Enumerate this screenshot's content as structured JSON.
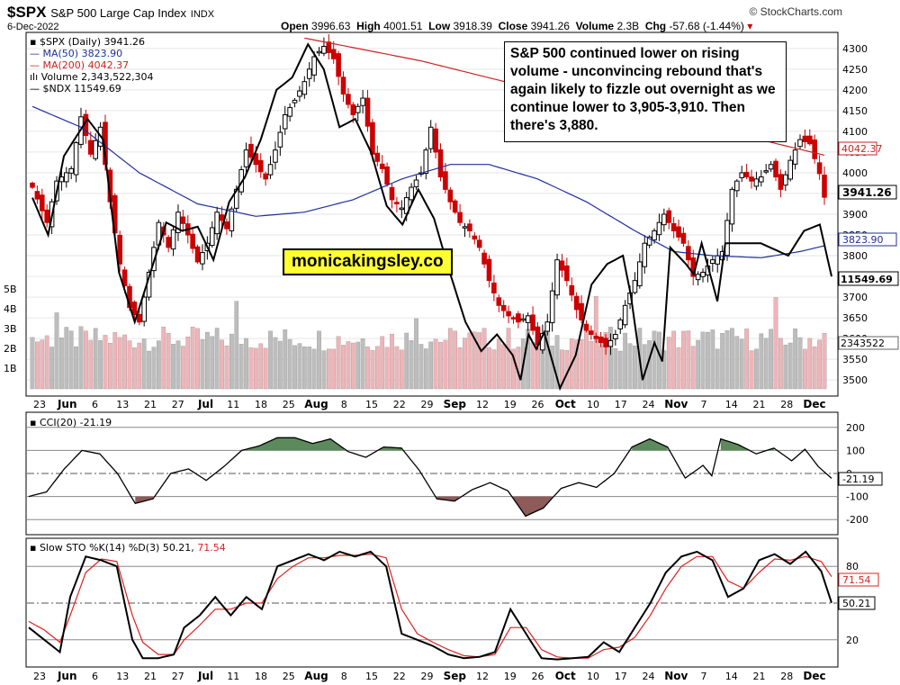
{
  "header": {
    "symbol": "$SPX",
    "name": "S&P 500 Large Cap Index",
    "exchange": "INDX",
    "date": "6-Dec-2022",
    "brand": "© StockCharts.com",
    "open_label": "Open",
    "open": "3996.63",
    "high_label": "High",
    "high": "4001.51",
    "low_label": "Low",
    "low": "3918.39",
    "close_label": "Close",
    "close": "3941.26",
    "volume_label": "Volume",
    "volume": "2.3B",
    "chg_label": "Chg",
    "chg": "-57.68 (-1.44%)"
  },
  "annotation": "S&P 500 continued lower on rising volume - unconvincing rebound that's again likely to fizzle out overnight as we continue lower to 3,905-3,910. Then there's 3,880.",
  "watermark": "monicakingsley.co",
  "colors": {
    "up": "#000000",
    "down": "#cc0000",
    "ma50": "#1f2f9f",
    "ma200": "#cc2222",
    "ndx": "#000000",
    "vol_up": "#bdbdbd",
    "vol_down": "#f0b4b8",
    "cci_pos": "#5c8a5c",
    "cci_neg": "#8f5a5a",
    "stoK": "#000000",
    "stoD": "#dd2222"
  },
  "chart_data": [
    {
      "type": "candlestick",
      "panel": "price",
      "legend": {
        "spx": "$SPX (Daily) 3941.26",
        "ma50": "MA(50) 3823.90",
        "ma200": "MA(200) 4042.37",
        "volume": "Volume 2,343,522,304",
        "ndx": "$NDX 11549.69"
      },
      "ylim": [
        3470,
        4330
      ],
      "y_ticks": [
        "4300",
        "4250",
        "4200",
        "4150",
        "4100",
        "4050",
        "4000",
        "3950",
        "3900",
        "3850",
        "3800",
        "3750",
        "3700",
        "3650",
        "3600",
        "3550",
        "3500"
      ],
      "vol_ticks": [
        "5B",
        "4B",
        "3B",
        "2B",
        "1B"
      ],
      "last_labels": {
        "ma200": "4042.37",
        "close": "3941.26",
        "ma50": "3823.90",
        "ndx": "11549.69",
        "volume": "2343522"
      },
      "x_ticks": [
        "23",
        "Jun",
        "6",
        "13",
        "21",
        "27",
        "Jul",
        "11",
        "18",
        "25",
        "Aug",
        "8",
        "15",
        "22",
        "29",
        "Sep",
        "12",
        "19",
        "26",
        "Oct",
        "10",
        "17",
        "24",
        "Nov",
        "7",
        "14",
        "21",
        "28",
        "Dec"
      ],
      "close_anchors": [
        [
          0,
          3965
        ],
        [
          3,
          3880
        ],
        [
          5,
          3980
        ],
        [
          8,
          4010
        ],
        [
          10,
          4135
        ],
        [
          12,
          4045
        ],
        [
          14,
          4110
        ],
        [
          16,
          3930
        ],
        [
          18,
          3780
        ],
        [
          20,
          3675
        ],
        [
          22,
          3640
        ],
        [
          24,
          3760
        ],
        [
          26,
          3880
        ],
        [
          28,
          3820
        ],
        [
          30,
          3905
        ],
        [
          32,
          3850
        ],
        [
          34,
          3785
        ],
        [
          36,
          3830
        ],
        [
          38,
          3905
        ],
        [
          40,
          3865
        ],
        [
          42,
          3960
        ],
        [
          44,
          4055
        ],
        [
          46,
          4020
        ],
        [
          48,
          3985
        ],
        [
          50,
          4055
        ],
        [
          52,
          4140
        ],
        [
          54,
          4175
        ],
        [
          56,
          4220
        ],
        [
          58,
          4280
        ],
        [
          60,
          4305
        ],
        [
          62,
          4275
        ],
        [
          64,
          4190
        ],
        [
          66,
          4140
        ],
        [
          68,
          4180
        ],
        [
          70,
          4045
        ],
        [
          72,
          4010
        ],
        [
          74,
          3935
        ],
        [
          76,
          3915
        ],
        [
          78,
          3965
        ],
        [
          80,
          4000
        ],
        [
          82,
          4110
        ],
        [
          84,
          3990
        ],
        [
          86,
          3930
        ],
        [
          88,
          3880
        ],
        [
          90,
          3860
        ],
        [
          92,
          3820
        ],
        [
          94,
          3740
        ],
        [
          96,
          3680
        ],
        [
          98,
          3655
        ],
        [
          100,
          3640
        ],
        [
          102,
          3655
        ],
        [
          104,
          3585
        ],
        [
          106,
          3640
        ],
        [
          108,
          3790
        ],
        [
          110,
          3740
        ],
        [
          112,
          3670
        ],
        [
          114,
          3620
        ],
        [
          116,
          3600
        ],
        [
          118,
          3580
        ],
        [
          120,
          3610
        ],
        [
          122,
          3680
        ],
        [
          124,
          3740
        ],
        [
          126,
          3830
        ],
        [
          128,
          3860
        ],
        [
          130,
          3900
        ],
        [
          132,
          3860
        ],
        [
          134,
          3830
        ],
        [
          136,
          3750
        ],
        [
          138,
          3760
        ],
        [
          140,
          3790
        ],
        [
          142,
          3810
        ],
        [
          144,
          3960
        ],
        [
          146,
          4000
        ],
        [
          148,
          3980
        ],
        [
          150,
          3990
        ],
        [
          152,
          4020
        ],
        [
          154,
          3960
        ],
        [
          156,
          4030
        ],
        [
          158,
          4080
        ],
        [
          160,
          4070
        ],
        [
          162,
          3998
        ],
        [
          163,
          3941
        ]
      ],
      "ma50_anchors": [
        [
          0,
          4160
        ],
        [
          10,
          4110
        ],
        [
          22,
          4000
        ],
        [
          34,
          3925
        ],
        [
          46,
          3895
        ],
        [
          56,
          3905
        ],
        [
          66,
          3935
        ],
        [
          76,
          3985
        ],
        [
          86,
          4020
        ],
        [
          94,
          4020
        ],
        [
          104,
          3985
        ],
        [
          114,
          3930
        ],
        [
          124,
          3860
        ],
        [
          132,
          3810
        ],
        [
          140,
          3800
        ],
        [
          150,
          3795
        ],
        [
          158,
          3810
        ],
        [
          163,
          3823.9
        ]
      ],
      "ma200_anchors": [
        [
          56,
          4325
        ],
        [
          80,
          4270
        ],
        [
          104,
          4200
        ],
        [
          128,
          4140
        ],
        [
          148,
          4085
        ],
        [
          163,
          4042.37
        ]
      ],
      "ndx_anchors": [
        [
          0,
          3940
        ],
        [
          4,
          3850
        ],
        [
          8,
          4040
        ],
        [
          14,
          4130
        ],
        [
          18,
          4080
        ],
        [
          22,
          3760
        ],
        [
          26,
          3640
        ],
        [
          28,
          3700
        ],
        [
          34,
          3880
        ],
        [
          38,
          3860
        ],
        [
          42,
          3870
        ],
        [
          46,
          3790
        ],
        [
          50,
          3930
        ],
        [
          54,
          3990
        ],
        [
          58,
          4080
        ],
        [
          62,
          4200
        ],
        [
          66,
          4230
        ],
        [
          70,
          4310
        ],
        [
          74,
          4250
        ],
        [
          78,
          4110
        ],
        [
          82,
          4130
        ],
        [
          86,
          4050
        ],
        [
          90,
          3920
        ],
        [
          94,
          3875
        ],
        [
          98,
          3960
        ],
        [
          102,
          3890
        ],
        [
          106,
          3760
        ],
        [
          110,
          3640
        ],
        [
          114,
          3570
        ],
        [
          118,
          3610
        ],
        [
          122,
          3560
        ],
        [
          124,
          3500
        ],
        [
          126,
          3610
        ],
        [
          128,
          3575
        ],
        [
          130,
          3615
        ],
        [
          134,
          3480
        ],
        [
          138,
          3560
        ],
        [
          142,
          3730
        ],
        [
          146,
          3780
        ],
        [
          150,
          3800
        ],
        [
          152,
          3705
        ],
        [
          155,
          3500
        ],
        [
          158,
          3590
        ],
        [
          160,
          3545
        ],
        [
          162,
          3820
        ],
        [
          164,
          3800
        ],
        [
          166,
          3780
        ],
        [
          168,
          3755
        ],
        [
          170,
          3830
        ],
        [
          174,
          3690
        ],
        [
          176,
          3830
        ],
        [
          180,
          3830
        ],
        [
          185,
          3830
        ],
        [
          192,
          3800
        ],
        [
          196,
          3860
        ],
        [
          200,
          3875
        ],
        [
          203,
          3750
        ]
      ]
    },
    {
      "type": "line",
      "panel": "cci",
      "legend": "CCI(20) -21.19",
      "ylim": [
        -250,
        250
      ],
      "y_ticks": [
        "200",
        "100",
        "0",
        "-100",
        "-200"
      ],
      "last_label": "-21.19",
      "anchors": [
        [
          0,
          -100
        ],
        [
          4,
          -80
        ],
        [
          8,
          20
        ],
        [
          12,
          100
        ],
        [
          16,
          85
        ],
        [
          20,
          0
        ],
        [
          24,
          -130
        ],
        [
          28,
          -110
        ],
        [
          32,
          0
        ],
        [
          36,
          20
        ],
        [
          40,
          -30
        ],
        [
          44,
          30
        ],
        [
          48,
          100
        ],
        [
          52,
          120
        ],
        [
          56,
          155
        ],
        [
          60,
          155
        ],
        [
          64,
          130
        ],
        [
          68,
          150
        ],
        [
          72,
          95
        ],
        [
          76,
          70
        ],
        [
          80,
          115
        ],
        [
          84,
          110
        ],
        [
          88,
          15
        ],
        [
          92,
          -110
        ],
        [
          96,
          -120
        ],
        [
          100,
          -70
        ],
        [
          104,
          -40
        ],
        [
          108,
          -75
        ],
        [
          112,
          -185
        ],
        [
          116,
          -150
        ],
        [
          120,
          -65
        ],
        [
          124,
          -40
        ],
        [
          128,
          -60
        ],
        [
          132,
          0
        ],
        [
          136,
          115
        ],
        [
          140,
          150
        ],
        [
          144,
          115
        ],
        [
          148,
          -20
        ],
        [
          152,
          35
        ],
        [
          154,
          -10
        ],
        [
          156,
          150
        ],
        [
          160,
          125
        ],
        [
          164,
          85
        ],
        [
          168,
          110
        ],
        [
          172,
          55
        ],
        [
          175,
          105
        ],
        [
          178,
          30
        ],
        [
          181,
          -21.19
        ]
      ]
    },
    {
      "type": "line",
      "panel": "stochastic",
      "legend_prefix": "Slow STO %K(14) %D(3) 50.21,",
      "legend_d": "71.54",
      "ylim": [
        0,
        100
      ],
      "y_ticks": [
        "80",
        "20"
      ],
      "last_labels": {
        "d": "71.54",
        "k": "50.21"
      },
      "k_anchors": [
        [
          0,
          30
        ],
        [
          3,
          20
        ],
        [
          6,
          10
        ],
        [
          8,
          55
        ],
        [
          11,
          88
        ],
        [
          14,
          85
        ],
        [
          17,
          80
        ],
        [
          20,
          20
        ],
        [
          22,
          5
        ],
        [
          25,
          5
        ],
        [
          28,
          8
        ],
        [
          30,
          30
        ],
        [
          33,
          40
        ],
        [
          36,
          55
        ],
        [
          39,
          40
        ],
        [
          42,
          55
        ],
        [
          45,
          45
        ],
        [
          48,
          80
        ],
        [
          51,
          85
        ],
        [
          54,
          90
        ],
        [
          57,
          85
        ],
        [
          60,
          92
        ],
        [
          63,
          88
        ],
        [
          66,
          92
        ],
        [
          69,
          80
        ],
        [
          72,
          25
        ],
        [
          75,
          20
        ],
        [
          78,
          15
        ],
        [
          81,
          8
        ],
        [
          84,
          5
        ],
        [
          87,
          6
        ],
        [
          90,
          10
        ],
        [
          93,
          45
        ],
        [
          96,
          25
        ],
        [
          99,
          5
        ],
        [
          102,
          4
        ],
        [
          105,
          5
        ],
        [
          108,
          6
        ],
        [
          111,
          18
        ],
        [
          114,
          10
        ],
        [
          117,
          30
        ],
        [
          120,
          50
        ],
        [
          123,
          75
        ],
        [
          126,
          88
        ],
        [
          129,
          92
        ],
        [
          132,
          85
        ],
        [
          135,
          55
        ],
        [
          138,
          62
        ],
        [
          141,
          85
        ],
        [
          144,
          90
        ],
        [
          147,
          82
        ],
        [
          150,
          92
        ],
        [
          153,
          76
        ],
        [
          155,
          50.21
        ]
      ],
      "d_anchors": [
        [
          0,
          35
        ],
        [
          3,
          28
        ],
        [
          6,
          18
        ],
        [
          8,
          40
        ],
        [
          11,
          75
        ],
        [
          14,
          86
        ],
        [
          17,
          84
        ],
        [
          20,
          40
        ],
        [
          22,
          18
        ],
        [
          25,
          8
        ],
        [
          28,
          8
        ],
        [
          30,
          20
        ],
        [
          33,
          32
        ],
        [
          36,
          45
        ],
        [
          39,
          45
        ],
        [
          42,
          50
        ],
        [
          45,
          50
        ],
        [
          48,
          70
        ],
        [
          51,
          80
        ],
        [
          54,
          87
        ],
        [
          57,
          87
        ],
        [
          60,
          89
        ],
        [
          63,
          89
        ],
        [
          66,
          90
        ],
        [
          69,
          87
        ],
        [
          72,
          45
        ],
        [
          75,
          25
        ],
        [
          78,
          18
        ],
        [
          81,
          12
        ],
        [
          84,
          7
        ],
        [
          87,
          6
        ],
        [
          90,
          8
        ],
        [
          93,
          30
        ],
        [
          96,
          30
        ],
        [
          99,
          12
        ],
        [
          102,
          6
        ],
        [
          105,
          5
        ],
        [
          108,
          5
        ],
        [
          111,
          12
        ],
        [
          114,
          14
        ],
        [
          117,
          22
        ],
        [
          120,
          40
        ],
        [
          123,
          62
        ],
        [
          126,
          80
        ],
        [
          129,
          88
        ],
        [
          132,
          88
        ],
        [
          135,
          68
        ],
        [
          138,
          62
        ],
        [
          141,
          75
        ],
        [
          144,
          86
        ],
        [
          147,
          85
        ],
        [
          150,
          88
        ],
        [
          153,
          84
        ],
        [
          155,
          71.54
        ]
      ]
    }
  ]
}
